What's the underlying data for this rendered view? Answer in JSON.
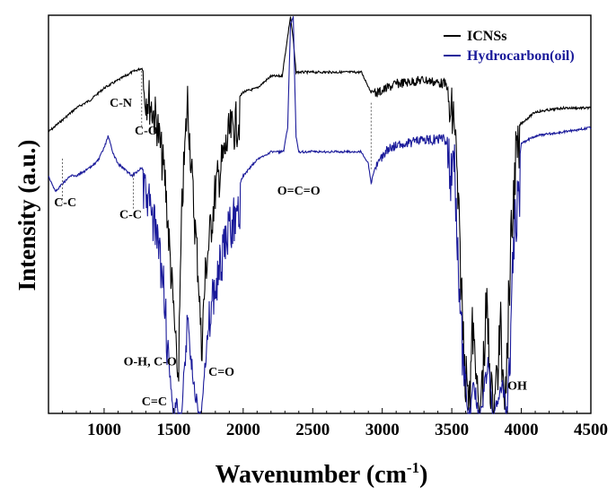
{
  "chart_data": {
    "type": "line",
    "xlabel": "Wavenumber (cm",
    "xlabel_sup": "-1",
    "xlabel_close": ")",
    "ylabel": "Intensity (a.u.)",
    "xlim": [
      600,
      4500
    ],
    "xticks": [
      1000,
      1500,
      2000,
      2500,
      3000,
      3500,
      4000,
      4500
    ],
    "y_axis_ticks": "none",
    "grid": false,
    "legend_position": "top-right",
    "series": [
      {
        "name": "ICNSs",
        "color": "#000000",
        "x": [
          600,
          700,
          800,
          900,
          1000,
          1100,
          1200,
          1270,
          1320,
          1380,
          1440,
          1480,
          1510,
          1530,
          1560,
          1600,
          1640,
          1680,
          1700,
          1730,
          1800,
          1900,
          2000,
          2100,
          2200,
          2280,
          2320,
          2340,
          2360,
          2380,
          2400,
          2500,
          2700,
          2850,
          2920,
          2980,
          3100,
          3300,
          3450,
          3520,
          3580,
          3620,
          3650,
          3700,
          3750,
          3800,
          3850,
          3880,
          3920,
          3960,
          4100,
          4300,
          4500
        ],
        "y": [
          0.71,
          0.74,
          0.77,
          0.79,
          0.82,
          0.84,
          0.86,
          0.87,
          0.85,
          0.79,
          0.64,
          0.42,
          0.26,
          0.09,
          0.58,
          0.85,
          0.6,
          0.4,
          0.22,
          0.42,
          0.62,
          0.76,
          0.81,
          0.82,
          0.85,
          0.85,
          0.95,
          1.0,
          0.94,
          0.86,
          0.86,
          0.86,
          0.86,
          0.86,
          0.81,
          0.82,
          0.84,
          0.85,
          0.84,
          0.82,
          0.3,
          0.05,
          0.3,
          0.0,
          0.35,
          0.02,
          0.3,
          0.05,
          0.46,
          0.72,
          0.76,
          0.77,
          0.77
        ]
      },
      {
        "name": "Hydrocarbon(oil)",
        "color": "#1a1a9a",
        "x": [
          600,
          650,
          700,
          760,
          800,
          900,
          960,
          1000,
          1030,
          1060,
          1100,
          1200,
          1270,
          1320,
          1380,
          1430,
          1470,
          1500,
          1520,
          1540,
          1560,
          1600,
          1640,
          1690,
          1720,
          1760,
          1800,
          1900,
          2000,
          2100,
          2200,
          2290,
          2320,
          2340,
          2360,
          2380,
          2400,
          2500,
          2700,
          2850,
          2900,
          2920,
          2960,
          3050,
          3300,
          3450,
          3520,
          3580,
          3620,
          3660,
          3700,
          3760,
          3800,
          3860,
          3900,
          3940,
          4000,
          4100,
          4300,
          4500
        ],
        "y": [
          0.6,
          0.56,
          0.58,
          0.6,
          0.6,
          0.62,
          0.64,
          0.67,
          0.7,
          0.66,
          0.63,
          0.6,
          0.62,
          0.59,
          0.5,
          0.38,
          0.12,
          0.0,
          0.05,
          0.0,
          0.02,
          0.3,
          0.1,
          0.0,
          0.12,
          0.3,
          0.38,
          0.52,
          0.6,
          0.64,
          0.66,
          0.66,
          0.72,
          0.98,
          1.0,
          0.7,
          0.66,
          0.66,
          0.66,
          0.66,
          0.63,
          0.58,
          0.64,
          0.68,
          0.7,
          0.7,
          0.68,
          0.2,
          0.0,
          0.1,
          0.0,
          0.15,
          0.0,
          0.1,
          0.02,
          0.5,
          0.68,
          0.7,
          0.71,
          0.72
        ]
      }
    ],
    "annotations": [
      {
        "text": "C-N",
        "x": 1040,
        "y": 0.77,
        "marker_x": null
      },
      {
        "text": "C-O",
        "x": 1220,
        "y": 0.7,
        "marker_x": 1270
      },
      {
        "text": "C-C",
        "x": 640,
        "y": 0.52,
        "marker_x": 700
      },
      {
        "text": "C-C",
        "x": 1110,
        "y": 0.49,
        "marker_x": 1210
      },
      {
        "text": "O=C=O",
        "x": 2245,
        "y": 0.55,
        "marker_x": null
      },
      {
        "text": "O-H, C-O",
        "x": 1140,
        "y": 0.12,
        "marker_x": null
      },
      {
        "text": "C=O",
        "x": 1750,
        "y": 0.095,
        "marker_x": null
      },
      {
        "text": "C=C",
        "x": 1270,
        "y": 0.02,
        "marker_x": null
      },
      {
        "text": "OH",
        "x": 3900,
        "y": 0.06,
        "marker_x": null
      }
    ],
    "marker_lines": [
      {
        "x": 700,
        "y_top": 0.64,
        "y_bottom": 0.53
      },
      {
        "x": 1210,
        "y_top": 0.6,
        "y_bottom": 0.51
      },
      {
        "x": 1270,
        "y_top": 0.86,
        "y_bottom": 0.72
      },
      {
        "x": 2920,
        "y_top": 0.78,
        "y_bottom": 0.61
      }
    ]
  }
}
